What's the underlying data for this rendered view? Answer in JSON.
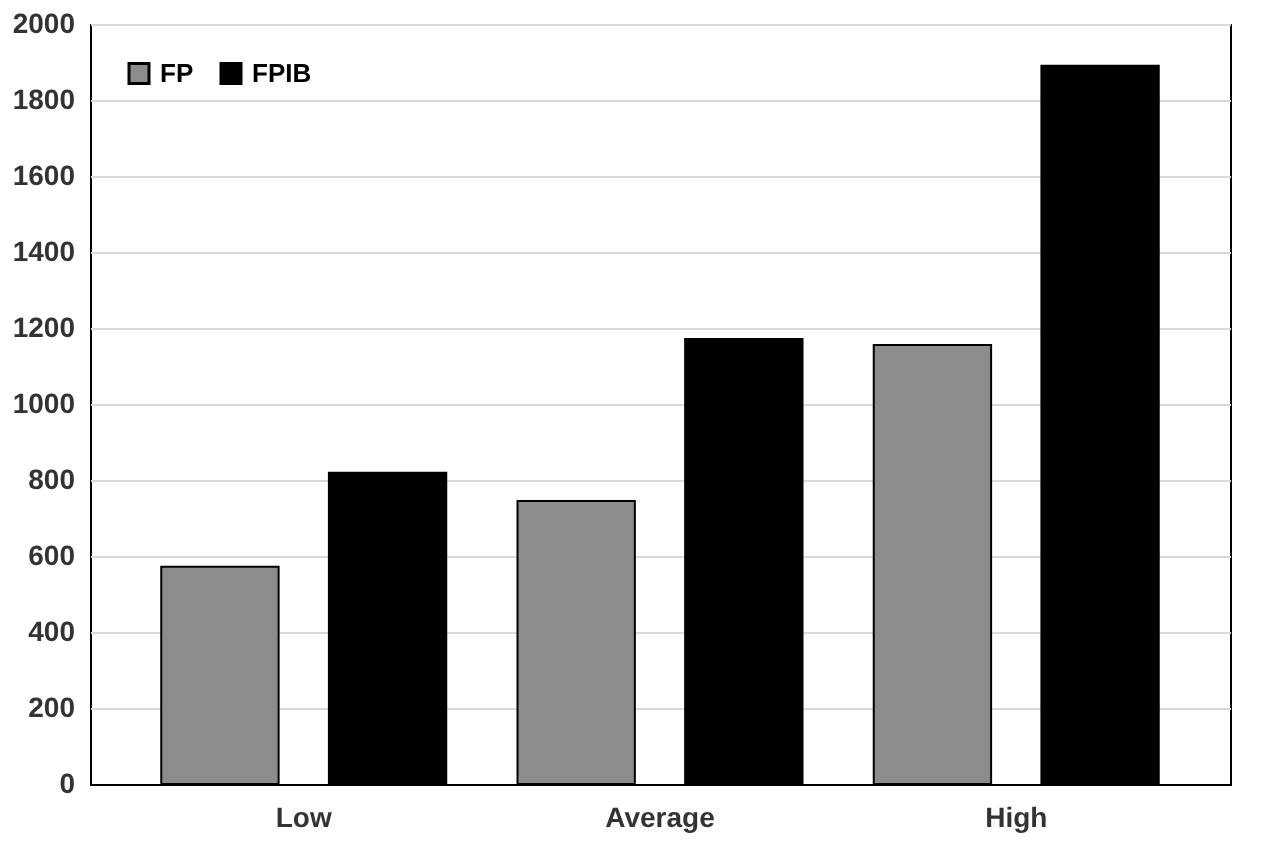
{
  "chart_data": {
    "type": "bar",
    "categories": [
      "Low",
      "Average",
      "High"
    ],
    "series": [
      {
        "name": "FP",
        "color": "#8c8c8c",
        "values": [
          572,
          745,
          1155
        ]
      },
      {
        "name": "FPIB",
        "color": "#000000",
        "values": [
          819,
          1171,
          1890
        ]
      }
    ],
    "ylim": [
      0,
      2000
    ],
    "yticks": [
      0,
      200,
      400,
      600,
      800,
      1000,
      1200,
      1400,
      1600,
      1800,
      2000
    ],
    "grid": "y",
    "legend": "top left"
  }
}
